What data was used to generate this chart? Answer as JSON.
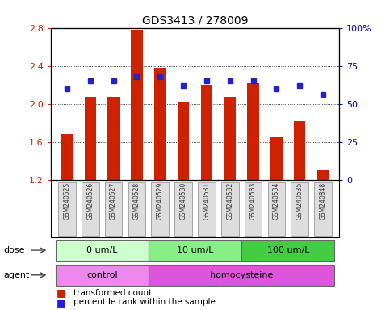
{
  "title": "GDS3413 / 278009",
  "samples": [
    "GSM240525",
    "GSM240526",
    "GSM240527",
    "GSM240528",
    "GSM240529",
    "GSM240530",
    "GSM240531",
    "GSM240532",
    "GSM240533",
    "GSM240534",
    "GSM240535",
    "GSM240848"
  ],
  "red_values": [
    1.68,
    2.07,
    2.07,
    2.78,
    2.38,
    2.02,
    2.2,
    2.07,
    2.22,
    1.65,
    1.82,
    1.3
  ],
  "blue_pct": [
    60,
    65,
    65,
    68,
    68,
    62,
    65,
    65,
    65,
    60,
    62,
    56
  ],
  "ylim_left": [
    1.2,
    2.8
  ],
  "ylim_right": [
    0,
    100
  ],
  "y_ticks_left": [
    1.2,
    1.6,
    2.0,
    2.4,
    2.8
  ],
  "y_ticks_right": [
    0,
    25,
    50,
    75,
    100
  ],
  "bar_color": "#CC2200",
  "dot_color": "#2222CC",
  "bg_color": "#FFFFFF",
  "dose_groups": [
    {
      "label": "0 um/L",
      "start": 0,
      "end": 4,
      "color": "#CCFFCC"
    },
    {
      "label": "10 um/L",
      "start": 4,
      "end": 8,
      "color": "#88EE88"
    },
    {
      "label": "100 um/L",
      "start": 8,
      "end": 12,
      "color": "#44CC44"
    }
  ],
  "agent_groups": [
    {
      "label": "control",
      "start": 0,
      "end": 4,
      "color": "#EE88EE"
    },
    {
      "label": "homocysteine",
      "start": 4,
      "end": 12,
      "color": "#DD55DD"
    }
  ],
  "dose_label": "dose",
  "agent_label": "agent",
  "legend_red": "transformed count",
  "legend_blue": "percentile rank within the sample",
  "right_axis_color": "#0000BB",
  "left_axis_color": "#CC2200"
}
